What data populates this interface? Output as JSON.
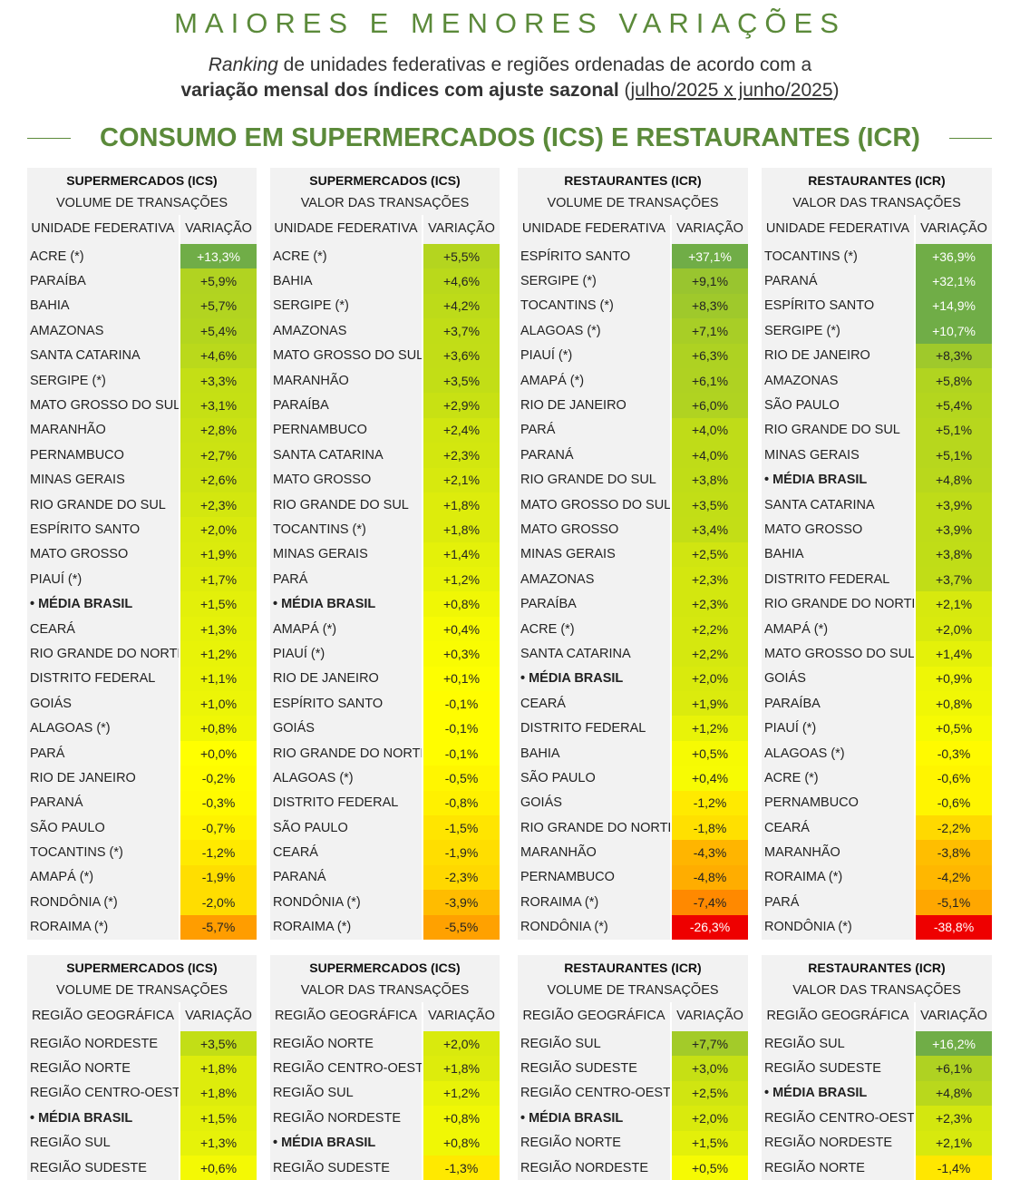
{
  "title": "MAIORES E MENORES VARIAÇÕES",
  "subtitle": {
    "line1_italic": "Ranking",
    "line1_rest": " de unidades federativas e regiões ordenadas de acordo com a",
    "line2_bold": "variação mensal dos índices com ajuste sazonal",
    "line2_period": "julho/2025 x junho/2025"
  },
  "section_title": "CONSUMO EM SUPERMERCADOS (ICS) E RESTAURANTES (ICR)",
  "colors": {
    "accent": "#5b8a3a",
    "header_bg": "#f2f2f2"
  },
  "state_tables": [
    {
      "title": "SUPERMERCADOS (ICS)",
      "subtitle": "VOLUME DE TRANSAÇÕES",
      "col1": "UNIDADE FEDERATIVA",
      "col2": "VARIAÇÃO",
      "rows": [
        {
          "name": "ACRE (*)",
          "value": "+13,3%",
          "v": 13.3
        },
        {
          "name": "PARAÍBA",
          "value": "+5,9%",
          "v": 5.9
        },
        {
          "name": "BAHIA",
          "value": "+5,7%",
          "v": 5.7
        },
        {
          "name": "AMAZONAS",
          "value": "+5,4%",
          "v": 5.4
        },
        {
          "name": "SANTA CATARINA",
          "value": "+4,6%",
          "v": 4.6
        },
        {
          "name": "SERGIPE (*)",
          "value": "+3,3%",
          "v": 3.3
        },
        {
          "name": "MATO GROSSO DO SUL",
          "value": "+3,1%",
          "v": 3.1
        },
        {
          "name": "MARANHÃO",
          "value": "+2,8%",
          "v": 2.8
        },
        {
          "name": "PERNAMBUCO",
          "value": "+2,7%",
          "v": 2.7
        },
        {
          "name": "MINAS GERAIS",
          "value": "+2,6%",
          "v": 2.6
        },
        {
          "name": "RIO GRANDE DO SUL",
          "value": "+2,3%",
          "v": 2.3
        },
        {
          "name": "ESPÍRITO SANTO",
          "value": "+2,0%",
          "v": 2.0
        },
        {
          "name": "MATO GROSSO",
          "value": "+1,9%",
          "v": 1.9
        },
        {
          "name": "PIAUÍ (*)",
          "value": "+1,7%",
          "v": 1.7
        },
        {
          "name": "• MÉDIA BRASIL",
          "value": "+1,5%",
          "v": 1.5,
          "bold": true
        },
        {
          "name": "CEARÁ",
          "value": "+1,3%",
          "v": 1.3
        },
        {
          "name": "RIO GRANDE DO NORTE",
          "value": "+1,2%",
          "v": 1.2
        },
        {
          "name": "DISTRITO FEDERAL",
          "value": "+1,1%",
          "v": 1.1
        },
        {
          "name": "GOIÁS",
          "value": "+1,0%",
          "v": 1.0
        },
        {
          "name": "ALAGOAS (*)",
          "value": "+0,8%",
          "v": 0.8
        },
        {
          "name": "PARÁ",
          "value": "+0,0%",
          "v": 0.0
        },
        {
          "name": "RIO DE JANEIRO",
          "value": "-0,2%",
          "v": -0.2
        },
        {
          "name": "PARANÁ",
          "value": "-0,3%",
          "v": -0.3
        },
        {
          "name": "SÃO PAULO",
          "value": "-0,7%",
          "v": -0.7
        },
        {
          "name": "TOCANTINS (*)",
          "value": "-1,2%",
          "v": -1.2
        },
        {
          "name": "AMAPÁ (*)",
          "value": "-1,9%",
          "v": -1.9
        },
        {
          "name": "RONDÔNIA (*)",
          "value": "-2,0%",
          "v": -2.0
        },
        {
          "name": "RORAIMA (*)",
          "value": "-5,7%",
          "v": -5.7
        }
      ]
    },
    {
      "title": "SUPERMERCADOS (ICS)",
      "subtitle": "VALOR DAS TRANSAÇÕES",
      "col1": "UNIDADE FEDERATIVA",
      "col2": "VARIAÇÃO",
      "rows": [
        {
          "name": "ACRE (*)",
          "value": "+5,5%",
          "v": 5.5
        },
        {
          "name": "BAHIA",
          "value": "+4,6%",
          "v": 4.6
        },
        {
          "name": "SERGIPE (*)",
          "value": "+4,2%",
          "v": 4.2
        },
        {
          "name": "AMAZONAS",
          "value": "+3,7%",
          "v": 3.7
        },
        {
          "name": "MATO GROSSO DO SUL",
          "value": "+3,6%",
          "v": 3.6
        },
        {
          "name": "MARANHÃO",
          "value": "+3,5%",
          "v": 3.5
        },
        {
          "name": "PARAÍBA",
          "value": "+2,9%",
          "v": 2.9
        },
        {
          "name": "PERNAMBUCO",
          "value": "+2,4%",
          "v": 2.4
        },
        {
          "name": "SANTA CATARINA",
          "value": "+2,3%",
          "v": 2.3
        },
        {
          "name": "MATO GROSSO",
          "value": "+2,1%",
          "v": 2.1
        },
        {
          "name": "RIO GRANDE DO SUL",
          "value": "+1,8%",
          "v": 1.8
        },
        {
          "name": "TOCANTINS (*)",
          "value": "+1,8%",
          "v": 1.8
        },
        {
          "name": "MINAS GERAIS",
          "value": "+1,4%",
          "v": 1.4
        },
        {
          "name": "PARÁ",
          "value": "+1,2%",
          "v": 1.2
        },
        {
          "name": "• MÉDIA BRASIL",
          "value": "+0,8%",
          "v": 0.8,
          "bold": true
        },
        {
          "name": "AMAPÁ (*)",
          "value": "+0,4%",
          "v": 0.4
        },
        {
          "name": "PIAUÍ (*)",
          "value": "+0,3%",
          "v": 0.3
        },
        {
          "name": "RIO DE JANEIRO",
          "value": "+0,1%",
          "v": 0.1
        },
        {
          "name": "ESPÍRITO SANTO",
          "value": "-0,1%",
          "v": -0.1
        },
        {
          "name": "GOIÁS",
          "value": "-0,1%",
          "v": -0.1
        },
        {
          "name": "RIO GRANDE DO NORTE",
          "value": "-0,1%",
          "v": -0.1
        },
        {
          "name": "ALAGOAS (*)",
          "value": "-0,5%",
          "v": -0.5
        },
        {
          "name": "DISTRITO FEDERAL",
          "value": "-0,8%",
          "v": -0.8
        },
        {
          "name": "SÃO PAULO",
          "value": "-1,5%",
          "v": -1.5
        },
        {
          "name": "CEARÁ",
          "value": "-1,9%",
          "v": -1.9
        },
        {
          "name": "PARANÁ",
          "value": "-2,3%",
          "v": -2.3
        },
        {
          "name": "RONDÔNIA (*)",
          "value": "-3,9%",
          "v": -3.9
        },
        {
          "name": "RORAIMA (*)",
          "value": "-5,5%",
          "v": -5.5
        }
      ]
    },
    {
      "title": "RESTAURANTES (ICR)",
      "subtitle": "VOLUME DE TRANSAÇÕES",
      "col1": "UNIDADE FEDERATIVA",
      "col2": "VARIAÇÃO",
      "rows": [
        {
          "name": "ESPÍRITO SANTO",
          "value": "+37,1%",
          "v": 37.1
        },
        {
          "name": "SERGIPE (*)",
          "value": "+9,1%",
          "v": 9.1
        },
        {
          "name": "TOCANTINS (*)",
          "value": "+8,3%",
          "v": 8.3
        },
        {
          "name": "ALAGOAS (*)",
          "value": "+7,1%",
          "v": 7.1
        },
        {
          "name": "PIAUÍ (*)",
          "value": "+6,3%",
          "v": 6.3
        },
        {
          "name": "AMAPÁ (*)",
          "value": "+6,1%",
          "v": 6.1
        },
        {
          "name": "RIO DE JANEIRO",
          "value": "+6,0%",
          "v": 6.0
        },
        {
          "name": "PARÁ",
          "value": "+4,0%",
          "v": 4.0
        },
        {
          "name": "PARANÁ",
          "value": "+4,0%",
          "v": 4.0
        },
        {
          "name": "RIO GRANDE DO SUL",
          "value": "+3,8%",
          "v": 3.8
        },
        {
          "name": "MATO GROSSO DO SUL",
          "value": "+3,5%",
          "v": 3.5
        },
        {
          "name": "MATO GROSSO",
          "value": "+3,4%",
          "v": 3.4
        },
        {
          "name": "MINAS GERAIS",
          "value": "+2,5%",
          "v": 2.5
        },
        {
          "name": "AMAZONAS",
          "value": "+2,3%",
          "v": 2.3
        },
        {
          "name": "PARAÍBA",
          "value": "+2,3%",
          "v": 2.3
        },
        {
          "name": "ACRE (*)",
          "value": "+2,2%",
          "v": 2.2
        },
        {
          "name": "SANTA CATARINA",
          "value": "+2,2%",
          "v": 2.2
        },
        {
          "name": "• MÉDIA BRASIL",
          "value": "+2,0%",
          "v": 2.0,
          "bold": true
        },
        {
          "name": "CEARÁ",
          "value": "+1,9%",
          "v": 1.9
        },
        {
          "name": "DISTRITO FEDERAL",
          "value": "+1,2%",
          "v": 1.2
        },
        {
          "name": "BAHIA",
          "value": "+0,5%",
          "v": 0.5
        },
        {
          "name": "SÃO PAULO",
          "value": "+0,4%",
          "v": 0.4
        },
        {
          "name": "GOIÁS",
          "value": "-1,2%",
          "v": -1.2
        },
        {
          "name": "RIO GRANDE DO NORTE",
          "value": "-1,8%",
          "v": -1.8
        },
        {
          "name": "MARANHÃO",
          "value": "-4,3%",
          "v": -4.3
        },
        {
          "name": "PERNAMBUCO",
          "value": "-4,8%",
          "v": -4.8
        },
        {
          "name": "RORAIMA (*)",
          "value": "-7,4%",
          "v": -7.4
        },
        {
          "name": "RONDÔNIA (*)",
          "value": "-26,3%",
          "v": -26.3
        }
      ]
    },
    {
      "title": "RESTAURANTES (ICR)",
      "subtitle": "VALOR DAS TRANSAÇÕES",
      "col1": "UNIDADE FEDERATIVA",
      "col2": "VARIAÇÃO",
      "rows": [
        {
          "name": "TOCANTINS (*)",
          "value": "+36,9%",
          "v": 36.9
        },
        {
          "name": "PARANÁ",
          "value": "+32,1%",
          "v": 32.1
        },
        {
          "name": "ESPÍRITO SANTO",
          "value": "+14,9%",
          "v": 14.9
        },
        {
          "name": "SERGIPE (*)",
          "value": "+10,7%",
          "v": 10.7
        },
        {
          "name": "RIO DE JANEIRO",
          "value": "+8,3%",
          "v": 8.3
        },
        {
          "name": "AMAZONAS",
          "value": "+5,8%",
          "v": 5.8
        },
        {
          "name": "SÃO PAULO",
          "value": "+5,4%",
          "v": 5.4
        },
        {
          "name": "RIO GRANDE DO SUL",
          "value": "+5,1%",
          "v": 5.1
        },
        {
          "name": "MINAS GERAIS",
          "value": "+5,1%",
          "v": 5.1
        },
        {
          "name": "• MÉDIA BRASIL",
          "value": "+4,8%",
          "v": 4.8,
          "bold": true
        },
        {
          "name": "SANTA CATARINA",
          "value": "+3,9%",
          "v": 3.9
        },
        {
          "name": "MATO GROSSO",
          "value": "+3,9%",
          "v": 3.9
        },
        {
          "name": "BAHIA",
          "value": "+3,8%",
          "v": 3.8
        },
        {
          "name": "DISTRITO FEDERAL",
          "value": "+3,7%",
          "v": 3.7
        },
        {
          "name": "RIO GRANDE DO NORTE",
          "value": "+2,1%",
          "v": 2.1
        },
        {
          "name": "AMAPÁ (*)",
          "value": "+2,0%",
          "v": 2.0
        },
        {
          "name": "MATO GROSSO DO SUL",
          "value": "+1,4%",
          "v": 1.4
        },
        {
          "name": "GOIÁS",
          "value": "+0,9%",
          "v": 0.9
        },
        {
          "name": "PARAÍBA",
          "value": "+0,8%",
          "v": 0.8
        },
        {
          "name": "PIAUÍ (*)",
          "value": "+0,5%",
          "v": 0.5
        },
        {
          "name": "ALAGOAS (*)",
          "value": "-0,3%",
          "v": -0.3
        },
        {
          "name": "ACRE (*)",
          "value": "-0,6%",
          "v": -0.6
        },
        {
          "name": "PERNAMBUCO",
          "value": "-0,6%",
          "v": -0.6
        },
        {
          "name": "CEARÁ",
          "value": "-2,2%",
          "v": -2.2
        },
        {
          "name": "MARANHÃO",
          "value": "-3,8%",
          "v": -3.8
        },
        {
          "name": "RORAIMA (*)",
          "value": "-4,2%",
          "v": -4.2
        },
        {
          "name": "PARÁ",
          "value": "-5,1%",
          "v": -5.1
        },
        {
          "name": "RONDÔNIA (*)",
          "value": "-38,8%",
          "v": -38.8
        }
      ]
    }
  ],
  "region_tables": [
    {
      "title": "SUPERMERCADOS (ICS)",
      "subtitle": "VOLUME DE TRANSAÇÕES",
      "col1": "REGIÃO GEOGRÁFICA",
      "col2": "VARIAÇÃO",
      "rows": [
        {
          "name": "REGIÃO NORDESTE",
          "value": "+3,5%",
          "v": 3.5
        },
        {
          "name": "REGIÃO NORTE",
          "value": "+1,8%",
          "v": 1.8
        },
        {
          "name": "REGIÃO CENTRO-OESTE",
          "value": "+1,8%",
          "v": 1.8
        },
        {
          "name": "• MÉDIA BRASIL",
          "value": "+1,5%",
          "v": 1.5,
          "bold": true
        },
        {
          "name": "REGIÃO SUL",
          "value": "+1,3%",
          "v": 1.3
        },
        {
          "name": "REGIÃO SUDESTE",
          "value": "+0,6%",
          "v": 0.6
        }
      ]
    },
    {
      "title": "SUPERMERCADOS (ICS)",
      "subtitle": "VALOR DAS TRANSAÇÕES",
      "col1": "REGIÃO GEOGRÁFICA",
      "col2": "VARIAÇÃO",
      "rows": [
        {
          "name": "REGIÃO NORTE",
          "value": "+2,0%",
          "v": 2.0
        },
        {
          "name": "REGIÃO CENTRO-OESTE",
          "value": "+1,8%",
          "v": 1.8
        },
        {
          "name": "REGIÃO SUL",
          "value": "+1,2%",
          "v": 1.2
        },
        {
          "name": "REGIÃO NORDESTE",
          "value": "+0,8%",
          "v": 0.8
        },
        {
          "name": "• MÉDIA BRASIL",
          "value": "+0,8%",
          "v": 0.8,
          "bold": true
        },
        {
          "name": "REGIÃO SUDESTE",
          "value": "-1,3%",
          "v": -1.3
        }
      ]
    },
    {
      "title": "RESTAURANTES (ICR)",
      "subtitle": "VOLUME DE TRANSAÇÕES",
      "col1": "REGIÃO GEOGRÁFICA",
      "col2": "VARIAÇÃO",
      "rows": [
        {
          "name": "REGIÃO SUL",
          "value": "+7,7%",
          "v": 7.7
        },
        {
          "name": "REGIÃO SUDESTE",
          "value": "+3,0%",
          "v": 3.0
        },
        {
          "name": "REGIÃO CENTRO-OESTE",
          "value": "+2,5%",
          "v": 2.5
        },
        {
          "name": "• MÉDIA BRASIL",
          "value": "+2,0%",
          "v": 2.0,
          "bold": true
        },
        {
          "name": "REGIÃO NORTE",
          "value": "+1,5%",
          "v": 1.5
        },
        {
          "name": "REGIÃO NORDESTE",
          "value": "+0,5%",
          "v": 0.5
        }
      ]
    },
    {
      "title": "RESTAURANTES (ICR)",
      "subtitle": "VALOR DAS TRANSAÇÕES",
      "col1": "REGIÃO GEOGRÁFICA",
      "col2": "VARIAÇÃO",
      "rows": [
        {
          "name": "REGIÃO SUL",
          "value": "+16,2%",
          "v": 16.2
        },
        {
          "name": "REGIÃO SUDESTE",
          "value": "+6,1%",
          "v": 6.1
        },
        {
          "name": "• MÉDIA BRASIL",
          "value": "+4,8%",
          "v": 4.8,
          "bold": true
        },
        {
          "name": "REGIÃO CENTRO-OESTE",
          "value": "+2,3%",
          "v": 2.3
        },
        {
          "name": "REGIÃO NORDESTE",
          "value": "+2,1%",
          "v": 2.1
        },
        {
          "name": "REGIÃO NORTE",
          "value": "-1,4%",
          "v": -1.4
        }
      ]
    }
  ]
}
